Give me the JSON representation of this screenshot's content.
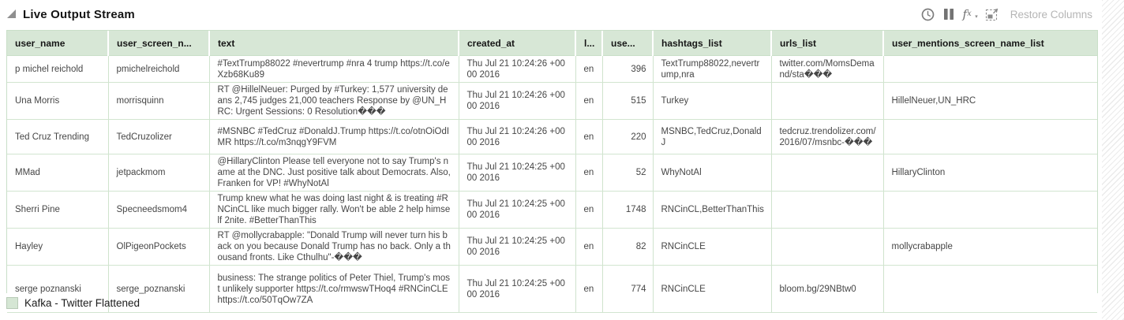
{
  "header": {
    "title": "Live Output Stream",
    "toolbar": {
      "restore_columns_label": "Restore Columns",
      "icons": [
        "clock-icon",
        "pause-icon",
        "fx-icon",
        "expand-icon"
      ]
    }
  },
  "table": {
    "columns": [
      {
        "key": "user_name",
        "label": "user_name"
      },
      {
        "key": "user_screen_name",
        "label": "user_screen_n..."
      },
      {
        "key": "text",
        "label": "text"
      },
      {
        "key": "created_at",
        "label": "created_at"
      },
      {
        "key": "lang",
        "label": "l..."
      },
      {
        "key": "user_count",
        "label": "use..."
      },
      {
        "key": "hashtags_list",
        "label": "hashtags_list"
      },
      {
        "key": "urls_list",
        "label": "urls_list"
      },
      {
        "key": "user_mentions_screen_name_list",
        "label": "user_mentions_screen_name_list"
      }
    ],
    "rows": [
      {
        "user_name": "p michel reichold",
        "user_screen_name": "pmichelreichold",
        "text": "#TextTrump88022 #nevertrump #nra 4 trump https://t.co/eXzb68Ku89",
        "created_at": "Thu Jul 21 10:24:26 +0000 2016",
        "lang": "en",
        "user_count": "396",
        "hashtags_list": "TextTrump88022,nevertrump,nra",
        "urls_list": "twitter.com/MomsDemand/sta���",
        "user_mentions_screen_name_list": ""
      },
      {
        "user_name": "Una Morris",
        "user_screen_name": "morrisquinn",
        "text": "RT @HillelNeuer: Purged by #Turkey: 1,577 university deans 2,745 judges 21,000 teachers Response by @UN_HRC: Urgent Sessions: 0 Resolution���",
        "created_at": "Thu Jul 21 10:24:26 +0000 2016",
        "lang": "en",
        "user_count": "515",
        "hashtags_list": "Turkey",
        "urls_list": "",
        "user_mentions_screen_name_list": "HillelNeuer,UN_HRC"
      },
      {
        "user_name": "Ted Cruz Trending",
        "user_screen_name": "TedCruzolizer",
        "text": "#MSNBC #TedCruz #DonaldJ.Trump https://t.co/otnOiOdIMR https://t.co/m3nqgY9FVM",
        "created_at": "Thu Jul 21 10:24:26 +0000 2016",
        "lang": "en",
        "user_count": "220",
        "hashtags_list": "MSNBC,TedCruz,DonaldJ",
        "urls_list": "tedcruz.trendolizer.com/2016/07/msnbc-���",
        "user_mentions_screen_name_list": ""
      },
      {
        "user_name": "MMad",
        "user_screen_name": "jetpackmom",
        "text": "@HillaryClinton Please tell everyone not to say Trump's name at the DNC. Just positive talk about Democrats. Also, Franken for VP! #WhyNotAl",
        "created_at": "Thu Jul 21 10:24:25 +0000 2016",
        "lang": "en",
        "user_count": "52",
        "hashtags_list": "WhyNotAl",
        "urls_list": "",
        "user_mentions_screen_name_list": "HillaryClinton"
      },
      {
        "user_name": "Sherri Pine",
        "user_screen_name": "Specneedsmom4",
        "text": "Trump knew what he was doing last night & is treating #RNCinCL like much bigger rally. Won't be able 2 help himself 2nite. #BetterThanThis",
        "created_at": "Thu Jul 21 10:24:25 +0000 2016",
        "lang": "en",
        "user_count": "1748",
        "hashtags_list": "RNCinCL,BetterThanThis",
        "urls_list": "",
        "user_mentions_screen_name_list": ""
      },
      {
        "user_name": "Hayley",
        "user_screen_name": "OlPigeonPockets",
        "text": "RT @mollycrabapple: \"Donald Trump will never turn his back on you because Donald Trump has no back. Only a thousand fronts. Like Cthulhu\"-���",
        "created_at": "Thu Jul 21 10:24:25 +0000 2016",
        "lang": "en",
        "user_count": "82",
        "hashtags_list": "RNCinCLE",
        "urls_list": "",
        "user_mentions_screen_name_list": "mollycrabapple"
      },
      {
        "user_name": "serge poznanski",
        "user_screen_name": "serge_poznanski",
        "text": "business: The strange politics of Peter Thiel, Trump's most unlikely supporter https://t.co/rmwswTHoq4 #RNCinCLE https://t.co/50TqOw7ZA",
        "created_at": "Thu Jul 21 10:24:25 +0000 2016",
        "lang": "en",
        "user_count": "774",
        "hashtags_list": "RNCinCLE",
        "urls_list": "bloom.bg/29NBtw0",
        "user_mentions_screen_name_list": ""
      }
    ]
  },
  "legend": {
    "label": "Kafka - Twitter Flattened",
    "swatch_color": "#d5e6d4"
  },
  "colors": {
    "header_bg": "#d7e7d6",
    "grid_border": "#cfe3cd",
    "muted_text": "#b5b5b5"
  }
}
